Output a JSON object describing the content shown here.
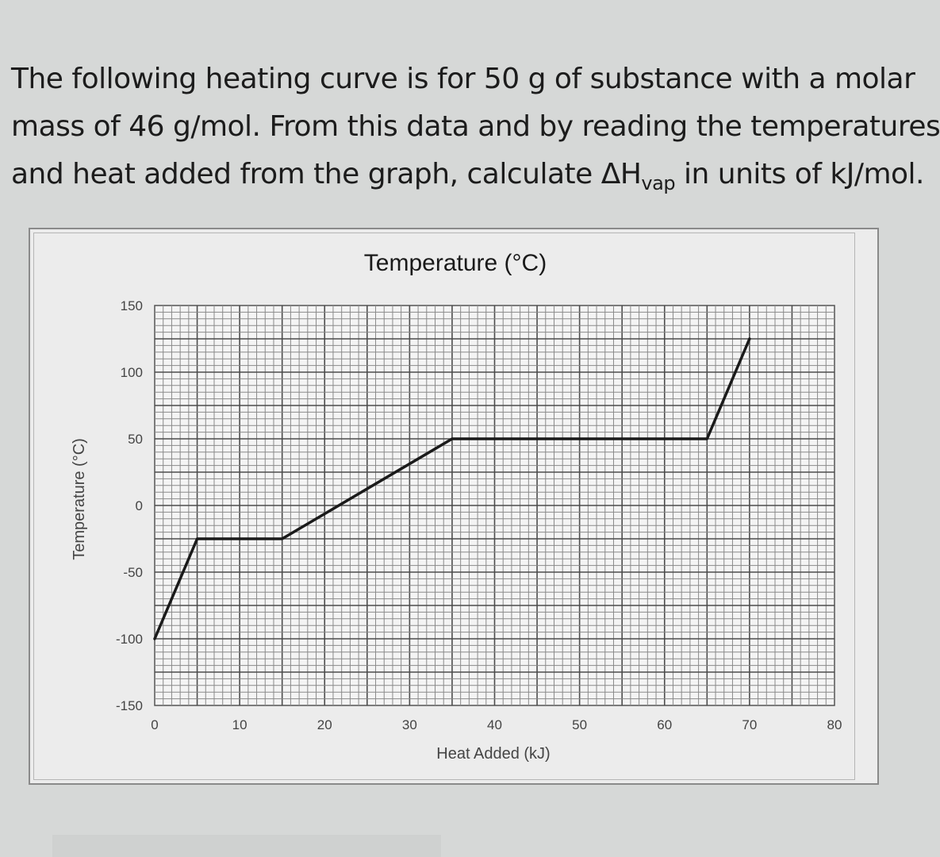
{
  "question": {
    "line1": "The following heating curve is for 50 g of substance with a molar",
    "line2": "mass of 46 g/mol. From this data and by reading the temperatures",
    "line3_pre": "and heat added from the graph, calculate ΔH",
    "line3_sub": "vap",
    "line3_post": " in units of kJ/mol."
  },
  "chart_data": {
    "type": "line",
    "title": "Temperature (°C)",
    "xlabel": "Heat Added (kJ)",
    "ylabel": "Temperature (°C)",
    "xlim": [
      0,
      80
    ],
    "ylim": [
      -150,
      150
    ],
    "x_ticks": [
      0,
      10,
      20,
      30,
      40,
      50,
      60,
      70,
      80
    ],
    "y_ticks": [
      150,
      100,
      50,
      0,
      -50,
      -100,
      -150
    ],
    "grid": true,
    "series": [
      {
        "x": [
          0,
          5,
          15,
          35,
          65,
          70
        ],
        "y": [
          -100,
          -25,
          -25,
          50,
          50,
          125
        ]
      }
    ]
  }
}
